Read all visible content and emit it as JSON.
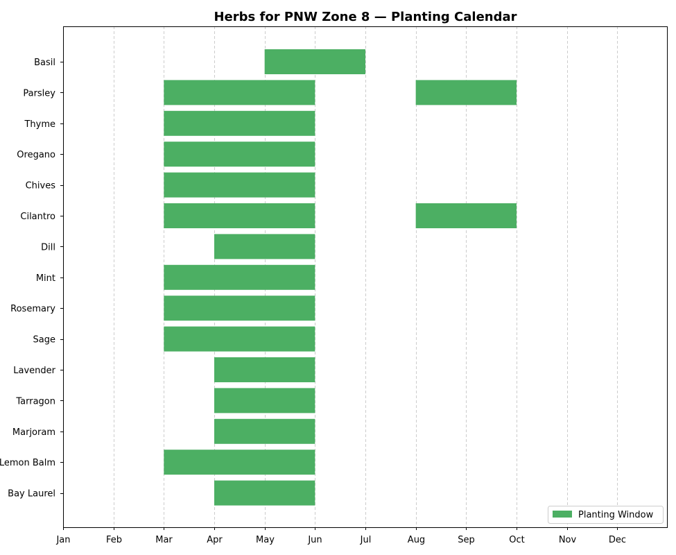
{
  "chart_data": {
    "type": "bar",
    "orientation": "horizontal",
    "title": "Herbs for PNW Zone 8 — Planting Calendar",
    "xlabel": "",
    "ylabel": "",
    "months": [
      "Jan",
      "Feb",
      "Mar",
      "Apr",
      "May",
      "Jun",
      "Jul",
      "Aug",
      "Sep",
      "Oct",
      "Nov",
      "Dec"
    ],
    "xlim": [
      1,
      13
    ],
    "grid": "x",
    "legend": {
      "placement": "lower-right",
      "entries": [
        "Planting Window"
      ]
    },
    "color": "#4caf63",
    "herbs": [
      {
        "name": "Basil",
        "windows": [
          [
            5,
            7
          ]
        ]
      },
      {
        "name": "Parsley",
        "windows": [
          [
            3,
            6
          ],
          [
            8,
            10
          ]
        ]
      },
      {
        "name": "Thyme",
        "windows": [
          [
            3,
            6
          ]
        ]
      },
      {
        "name": "Oregano",
        "windows": [
          [
            3,
            6
          ]
        ]
      },
      {
        "name": "Chives",
        "windows": [
          [
            3,
            6
          ]
        ]
      },
      {
        "name": "Cilantro",
        "windows": [
          [
            3,
            6
          ],
          [
            8,
            10
          ]
        ]
      },
      {
        "name": "Dill",
        "windows": [
          [
            4,
            6
          ]
        ]
      },
      {
        "name": "Mint",
        "windows": [
          [
            3,
            6
          ]
        ]
      },
      {
        "name": "Rosemary",
        "windows": [
          [
            3,
            6
          ]
        ]
      },
      {
        "name": "Sage",
        "windows": [
          [
            3,
            6
          ]
        ]
      },
      {
        "name": "Lavender",
        "windows": [
          [
            4,
            6
          ]
        ]
      },
      {
        "name": "Tarragon",
        "windows": [
          [
            4,
            6
          ]
        ]
      },
      {
        "name": "Marjoram",
        "windows": [
          [
            4,
            6
          ]
        ]
      },
      {
        "name": "Lemon Balm",
        "windows": [
          [
            3,
            6
          ]
        ]
      },
      {
        "name": "Bay Laurel",
        "windows": [
          [
            4,
            6
          ]
        ]
      }
    ]
  }
}
